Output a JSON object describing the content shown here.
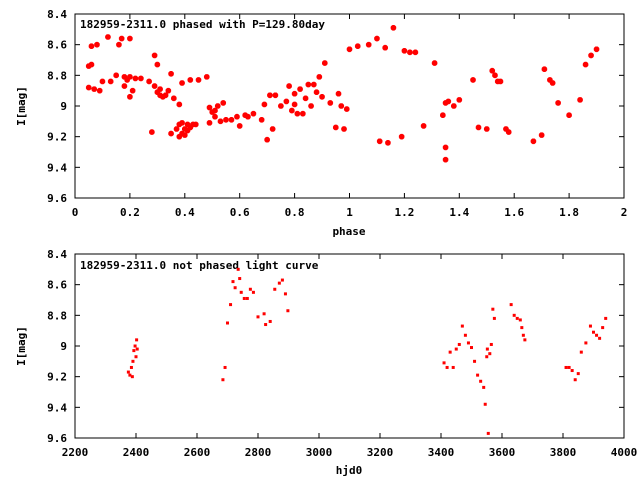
{
  "chart_data": [
    {
      "type": "scatter",
      "title": "182959-2311.0 phased with P=129.80day",
      "xlabel": "phase",
      "ylabel": "I[mag]",
      "xlim": [
        0,
        2
      ],
      "ylim": [
        8.4,
        9.6
      ],
      "y_inverted": true,
      "xticks": [
        "0",
        "0.2",
        "0.4",
        "0.6",
        "0.8",
        "1",
        "1.2",
        "1.4",
        "1.6",
        "1.8",
        "2"
      ],
      "yticks": [
        "8.4",
        "8.6",
        "8.8",
        "9",
        "9.2",
        "9.4",
        "9.6"
      ],
      "marker": "star",
      "color": "#ff0000",
      "series": [
        {
          "x": [
            0.05,
            0.05,
            0.06,
            0.06,
            0.07,
            0.08,
            0.09,
            0.1,
            0.12,
            0.13,
            0.15,
            0.16,
            0.17,
            0.18,
            0.18,
            0.19,
            0.2,
            0.2,
            0.2,
            0.21,
            0.22,
            0.24,
            0.27,
            0.28,
            0.29,
            0.29,
            0.3,
            0.3,
            0.31,
            0.31,
            0.32,
            0.33,
            0.34,
            0.35,
            0.35,
            0.36,
            0.37,
            0.38,
            0.38,
            0.38,
            0.39,
            0.39,
            0.39,
            0.4,
            0.4,
            0.41,
            0.41,
            0.42,
            0.42,
            0.43,
            0.44,
            0.45,
            0.48,
            0.49,
            0.49,
            0.5,
            0.51,
            0.51,
            0.52,
            0.53,
            0.54,
            0.55,
            0.57,
            0.59,
            0.6,
            0.62,
            0.63,
            0.65,
            0.68,
            0.69,
            0.7,
            0.71,
            0.72,
            0.73,
            0.75,
            0.77,
            0.78,
            0.79,
            0.8,
            0.8,
            0.81,
            0.82,
            0.83,
            0.84,
            0.85,
            0.86,
            0.87,
            0.88,
            0.89,
            0.9,
            0.91,
            0.93,
            0.95,
            0.96,
            0.97,
            0.98,
            0.99,
            1.0,
            1.03,
            1.07,
            1.1,
            1.11,
            1.13,
            1.14,
            1.16,
            1.19,
            1.2,
            1.22,
            1.24,
            1.27,
            1.31,
            1.34,
            1.35,
            1.35,
            1.35,
            1.36,
            1.38,
            1.4,
            1.45,
            1.47,
            1.5,
            1.52,
            1.53,
            1.54,
            1.55,
            1.57,
            1.58,
            1.67,
            1.7,
            1.71,
            1.73,
            1.74,
            1.76,
            1.8,
            1.84,
            1.86,
            1.88,
            1.9
          ],
          "y": [
            8.74,
            8.88,
            8.73,
            8.61,
            8.89,
            8.6,
            8.9,
            8.84,
            8.55,
            8.84,
            8.8,
            8.6,
            8.56,
            8.81,
            8.87,
            8.83,
            8.56,
            8.81,
            8.94,
            8.9,
            8.82,
            8.82,
            8.84,
            9.17,
            8.87,
            8.67,
            8.91,
            8.73,
            8.93,
            8.89,
            8.94,
            8.93,
            8.9,
            8.79,
            9.18,
            8.95,
            9.15,
            9.2,
            9.12,
            8.99,
            9.18,
            9.11,
            8.85,
            9.15,
            9.19,
            9.12,
            9.16,
            8.83,
            9.14,
            9.12,
            9.12,
            8.83,
            8.81,
            9.01,
            9.11,
            9.04,
            9.03,
            9.07,
            9.0,
            9.1,
            8.98,
            9.09,
            9.09,
            9.07,
            9.13,
            9.06,
            9.07,
            9.05,
            9.09,
            8.99,
            9.22,
            8.93,
            9.15,
            8.93,
            9.0,
            8.97,
            8.87,
            9.03,
            8.92,
            8.99,
            9.05,
            8.89,
            9.05,
            8.95,
            8.86,
            9.0,
            8.86,
            8.91,
            8.81,
            8.94,
            8.72,
            8.98,
            9.14,
            8.92,
            9.0,
            9.15,
            9.02,
            8.63,
            8.61,
            8.6,
            8.56,
            9.23,
            8.62,
            9.24,
            8.49,
            9.2,
            8.64,
            8.65,
            8.65,
            9.13,
            8.72,
            9.06,
            8.98,
            9.27,
            9.35,
            8.97,
            9.0,
            8.96,
            8.83,
            9.14,
            9.15,
            8.77,
            8.8,
            8.84,
            8.84,
            9.15,
            9.17,
            9.23,
            9.19,
            8.76,
            8.83,
            8.85,
            8.98,
            9.06,
            8.96,
            8.73,
            8.67,
            8.63
          ]
        }
      ]
    },
    {
      "type": "scatter",
      "title": "182959-2311.0 not phased light curve",
      "xlabel": "hjd0",
      "ylabel": "I[mag]",
      "xlim": [
        2200,
        4000
      ],
      "ylim": [
        8.4,
        9.6
      ],
      "y_inverted": true,
      "xticks": [
        "2200",
        "2400",
        "2600",
        "2800",
        "3000",
        "3200",
        "3400",
        "3600",
        "3800",
        "4000"
      ],
      "yticks": [
        "8.4",
        "8.6",
        "8.8",
        "9",
        "9.2",
        "9.4",
        "9.6"
      ],
      "marker": "dot",
      "color": "#ff0000",
      "series": [
        {
          "x": [
            2375,
            2380,
            2385,
            2388,
            2390,
            2393,
            2397,
            2400,
            2402,
            2404,
            2685,
            2692,
            2700,
            2710,
            2718,
            2725,
            2735,
            2740,
            2745,
            2755,
            2765,
            2775,
            2785,
            2800,
            2820,
            2825,
            2840,
            2855,
            2870,
            2880,
            2890,
            2898,
            3410,
            3420,
            3430,
            3440,
            3450,
            3460,
            3470,
            3480,
            3490,
            3500,
            3510,
            3520,
            3530,
            3540,
            3545,
            3550,
            3552,
            3555,
            3560,
            3565,
            3570,
            3575,
            3630,
            3640,
            3650,
            3660,
            3665,
            3670,
            3675,
            3810,
            3820,
            3830,
            3840,
            3850,
            3860,
            3875,
            3890,
            3900,
            3910,
            3920,
            3930,
            3940
          ],
          "y": [
            9.17,
            9.19,
            9.14,
            9.2,
            9.1,
            9.03,
            9.0,
            9.07,
            8.96,
            9.02,
            9.22,
            9.14,
            8.85,
            8.73,
            8.58,
            8.62,
            8.5,
            8.56,
            8.65,
            8.69,
            8.69,
            8.63,
            8.65,
            8.81,
            8.79,
            8.86,
            8.84,
            8.63,
            8.59,
            8.57,
            8.66,
            8.77,
            9.11,
            9.14,
            9.04,
            9.14,
            9.02,
            8.99,
            8.87,
            8.93,
            8.98,
            9.01,
            9.1,
            9.19,
            9.23,
            9.27,
            9.38,
            9.07,
            9.02,
            9.57,
            9.05,
            8.99,
            8.76,
            8.82,
            8.73,
            8.8,
            8.82,
            8.83,
            8.88,
            8.93,
            8.96,
            9.14,
            9.14,
            9.16,
            9.22,
            9.18,
            9.04,
            8.98,
            8.87,
            8.91,
            8.93,
            8.95,
            8.88,
            8.82
          ]
        }
      ]
    }
  ]
}
